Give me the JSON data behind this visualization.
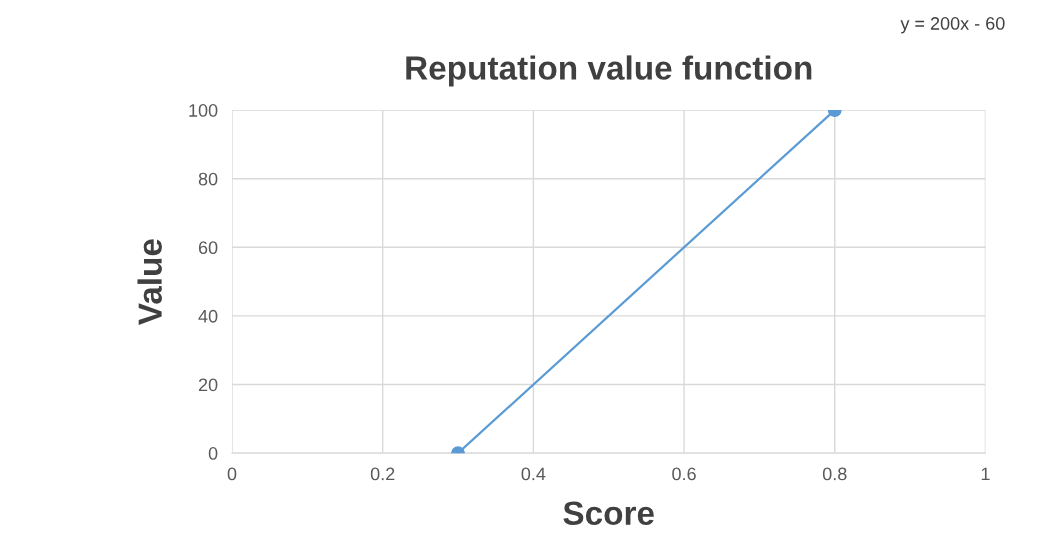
{
  "chart_data": {
    "type": "line",
    "title": "Reputation value function",
    "xlabel": "Score",
    "ylabel": "Value",
    "x": [
      0.3,
      0.8
    ],
    "series": [
      {
        "color": "#5b9bd5",
        "values": [
          0,
          100
        ]
      }
    ],
    "xlim": [
      0,
      1
    ],
    "xticks": [
      0,
      0.2,
      0.4,
      0.6,
      0.8,
      1
    ],
    "ylim": [
      0,
      100
    ],
    "yticks": [
      0,
      20,
      40,
      60,
      80,
      100
    ],
    "grid": true,
    "marker": "circle",
    "line_style": "solid",
    "annotations": [
      "y = 200x - 60"
    ]
  }
}
